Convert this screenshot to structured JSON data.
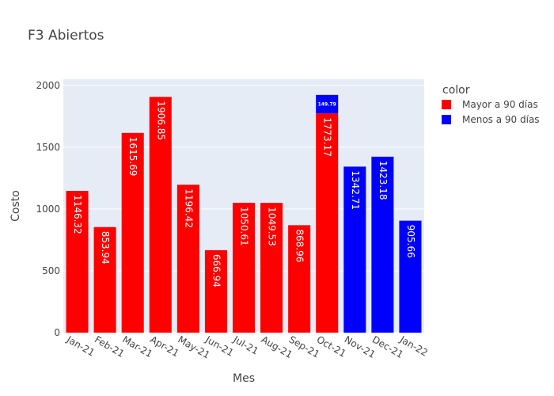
{
  "chart_data": {
    "type": "bar",
    "barmode": "stack",
    "title": "F3 Abiertos",
    "xlabel": "Mes",
    "ylabel": "Costo",
    "ylim": [
      0,
      2050
    ],
    "yticks": [
      0,
      500,
      1000,
      1500,
      2000
    ],
    "grid": true,
    "legend_title": "color",
    "legend_position": "right",
    "categories": [
      "Jan-21",
      "Feb-21",
      "Mar-21",
      "Apr-21",
      "May-21",
      "Jun-21",
      "Jul-21",
      "Aug-21",
      "Sep-21",
      "Oct-21",
      "Nov-21",
      "Dec-21",
      "Jan-22"
    ],
    "series": [
      {
        "name": "Mayor a 90 días",
        "color": "#ff0000",
        "values": [
          1146.32,
          853.94,
          1615.69,
          1906.85,
          1196.42,
          666.94,
          1050.61,
          1049.53,
          868.96,
          1773.17,
          null,
          null,
          null
        ],
        "labels": [
          "1146.32",
          "853.94",
          "1615.69",
          "1906.85",
          "1196.42",
          "666.94",
          "1050.61",
          "1049.53",
          "868.96",
          "1773.17",
          "",
          "",
          ""
        ]
      },
      {
        "name": "Menos a 90 días",
        "color": "#0000ff",
        "values": [
          null,
          null,
          null,
          null,
          null,
          null,
          null,
          null,
          null,
          149.79,
          1342.71,
          1423.18,
          905.66
        ],
        "labels": [
          "",
          "",
          "",
          "",
          "",
          "",
          "",
          "",
          "",
          "149.79",
          "1342.71",
          "1423.18",
          "905.66"
        ]
      }
    ]
  }
}
